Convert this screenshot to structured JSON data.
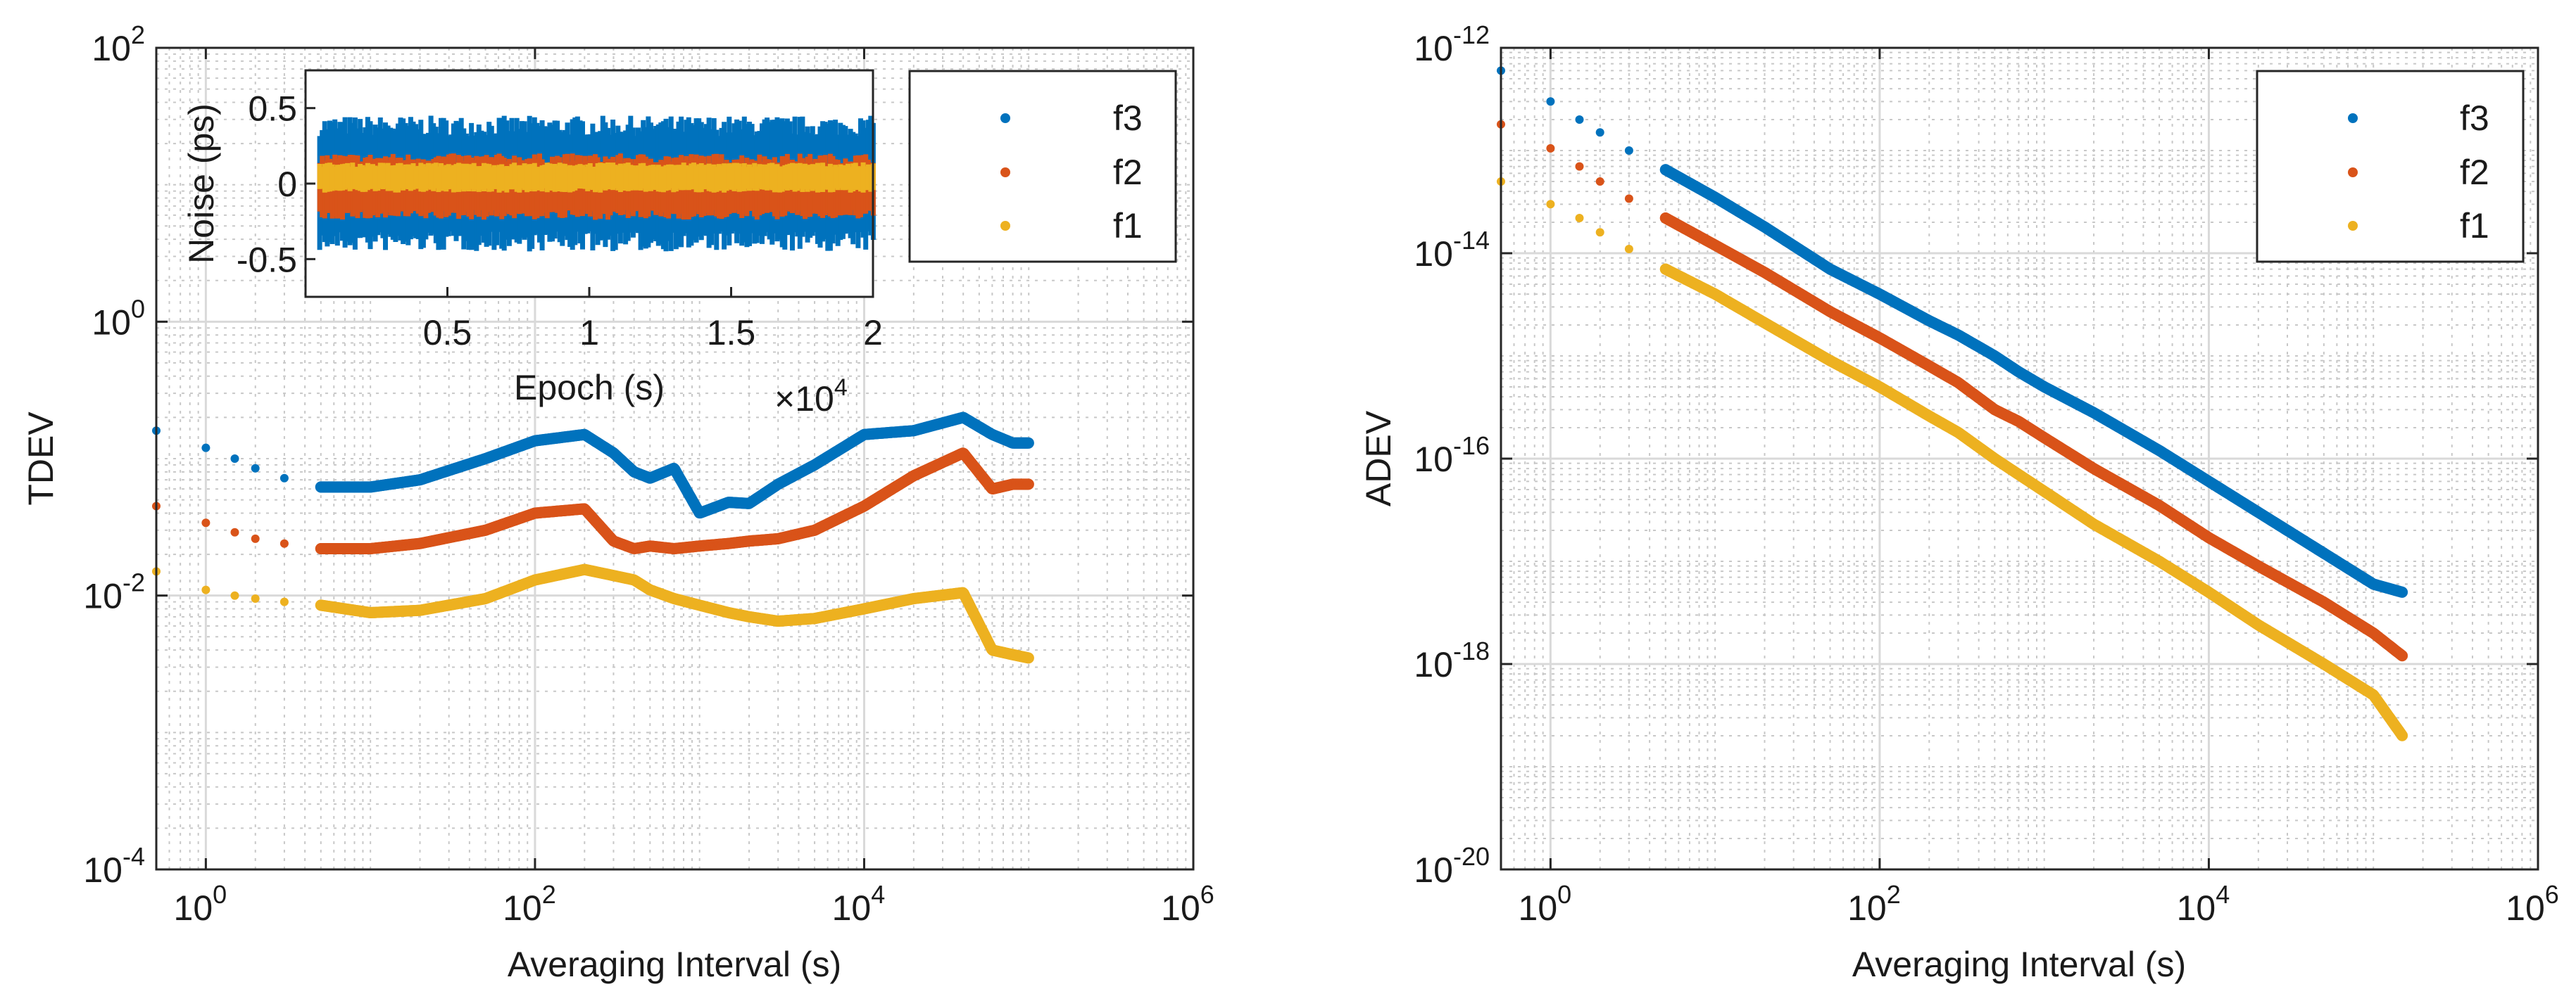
{
  "chart_data": [
    {
      "type": "scatter",
      "id": "tdev",
      "xlabel": "Averaging Interval (s)",
      "ylabel": "TDEV",
      "xscale": "log",
      "yscale": "log",
      "xlim": [
        0.5,
        1000000
      ],
      "ylim": [
        0.0001,
        100
      ],
      "grid": true,
      "xticks": [
        {
          "value": 1,
          "base": "10",
          "exp": "0"
        },
        {
          "value": 100,
          "base": "10",
          "exp": "2"
        },
        {
          "value": 10000,
          "base": "10",
          "exp": "4"
        },
        {
          "value": 1000000,
          "base": "10",
          "exp": "6"
        }
      ],
      "yticks": [
        {
          "value": 0.0001,
          "base": "10",
          "exp": "-4"
        },
        {
          "value": 0.01,
          "base": "10",
          "exp": "-2"
        },
        {
          "value": 1,
          "base": "10",
          "exp": "0"
        },
        {
          "value": 100,
          "base": "10",
          "exp": "2"
        }
      ],
      "legend_position": "top-right",
      "series": [
        {
          "name": "f3",
          "color": "#0072BD",
          "x": [
            0.5,
            1,
            1.5,
            2,
            3,
            5,
            10,
            20,
            50,
            100,
            200,
            300,
            400,
            500,
            700,
            1000,
            1500,
            2000,
            3000,
            5000,
            10000,
            20000,
            40000,
            60000,
            80000,
            100000
          ],
          "y": [
            0.16,
            0.12,
            0.1,
            0.085,
            0.072,
            0.062,
            0.062,
            0.07,
            0.1,
            0.135,
            0.15,
            0.11,
            0.08,
            0.072,
            0.085,
            0.04,
            0.048,
            0.047,
            0.065,
            0.09,
            0.15,
            0.16,
            0.2,
            0.15,
            0.13,
            0.13
          ]
        },
        {
          "name": "f2",
          "color": "#D95319",
          "x": [
            0.5,
            1,
            1.5,
            2,
            3,
            5,
            10,
            20,
            50,
            100,
            200,
            300,
            400,
            500,
            700,
            1000,
            1500,
            2000,
            3000,
            5000,
            10000,
            20000,
            40000,
            60000,
            80000,
            100000
          ],
          "y": [
            0.045,
            0.034,
            0.029,
            0.026,
            0.024,
            0.022,
            0.022,
            0.024,
            0.03,
            0.04,
            0.043,
            0.025,
            0.022,
            0.023,
            0.022,
            0.023,
            0.024,
            0.025,
            0.026,
            0.03,
            0.045,
            0.075,
            0.11,
            0.06,
            0.065,
            0.065
          ]
        },
        {
          "name": "f1",
          "color": "#EDB120",
          "x": [
            0.5,
            1,
            1.5,
            2,
            3,
            5,
            10,
            20,
            50,
            100,
            200,
            300,
            400,
            500,
            700,
            1000,
            1500,
            2000,
            3000,
            5000,
            10000,
            20000,
            40000,
            60000,
            80000,
            100000
          ],
          "y": [
            0.015,
            0.011,
            0.01,
            0.0095,
            0.009,
            0.0085,
            0.0075,
            0.0078,
            0.0095,
            0.013,
            0.0155,
            0.014,
            0.013,
            0.011,
            0.0095,
            0.0085,
            0.0075,
            0.007,
            0.0065,
            0.0068,
            0.008,
            0.0095,
            0.0105,
            0.004,
            0.0037,
            0.0035
          ]
        }
      ],
      "inset": {
        "type": "scatter",
        "xlabel": "Epoch (s)",
        "ylabel": "Noise (ps)",
        "xlim": [
          0,
          20000
        ],
        "ylim": [
          -0.75,
          0.75
        ],
        "xticks": [
          "0.5",
          "1",
          "1.5",
          "2"
        ],
        "xtick_values": [
          5000,
          10000,
          15000,
          20000
        ],
        "yticks": [
          "0.5",
          "0",
          "-0.5"
        ],
        "ytick_values": [
          0.5,
          0,
          -0.5
        ],
        "exponent_label": {
          "prefix": "×10",
          "exp": "4"
        },
        "series": [
          {
            "name": "f3",
            "color": "#0072BD",
            "center": 0.0,
            "half_range": 0.45
          },
          {
            "name": "f2",
            "color": "#D95319",
            "center": -0.02,
            "half_range": 0.22
          },
          {
            "name": "f1",
            "color": "#EDB120",
            "center": 0.04,
            "half_range": 0.1
          }
        ]
      }
    },
    {
      "type": "scatter",
      "id": "adev",
      "xlabel": "Averaging Interval (s)",
      "ylabel": "ADEV",
      "xscale": "log",
      "yscale": "log",
      "xlim": [
        0.5,
        1000000
      ],
      "ylim": [
        1e-20,
        1e-12
      ],
      "grid": true,
      "xticks": [
        {
          "value": 1,
          "base": "10",
          "exp": "0"
        },
        {
          "value": 100,
          "base": "10",
          "exp": "2"
        },
        {
          "value": 10000,
          "base": "10",
          "exp": "4"
        },
        {
          "value": 1000000,
          "base": "10",
          "exp": "6"
        }
      ],
      "yticks": [
        {
          "value": 1e-20,
          "base": "10",
          "exp": "-20"
        },
        {
          "value": 1e-18,
          "base": "10",
          "exp": "-18"
        },
        {
          "value": 1e-16,
          "base": "10",
          "exp": "-16"
        },
        {
          "value": 1e-14,
          "base": "10",
          "exp": "-14"
        },
        {
          "value": 1e-12,
          "base": "10",
          "exp": "-12"
        }
      ],
      "legend_position": "top-right",
      "series": [
        {
          "name": "f3",
          "color": "#0072BD",
          "x": [
            0.5,
            1,
            1.5,
            2,
            3,
            5,
            10,
            20,
            50,
            100,
            200,
            300,
            500,
            700,
            1000,
            2000,
            5000,
            10000,
            20000,
            50000,
            100000,
            150000
          ],
          "y": [
            6e-13,
            3e-13,
            2e-13,
            1.5e-13,
            1e-13,
            6.5e-14,
            3.5e-14,
            1.8e-14,
            7e-15,
            4e-15,
            2.2e-15,
            1.6e-15,
            1e-15,
            7e-16,
            5e-16,
            2.8e-16,
            1.2e-16,
            6e-17,
            3e-17,
            1.2e-17,
            6e-18,
            5e-18
          ]
        },
        {
          "name": "f2",
          "color": "#D95319",
          "x": [
            0.5,
            1,
            1.5,
            2,
            3,
            5,
            10,
            20,
            50,
            100,
            200,
            300,
            500,
            700,
            1000,
            2000,
            5000,
            10000,
            20000,
            50000,
            100000,
            150000
          ],
          "y": [
            1.8e-13,
            1.05e-13,
            7e-14,
            5e-14,
            3.4e-14,
            2.2e-14,
            1.2e-14,
            6.5e-15,
            2.7e-15,
            1.5e-15,
            8e-16,
            5.5e-16,
            3e-16,
            2.3e-16,
            1.6e-16,
            8e-17,
            3.5e-17,
            1.7e-17,
            9e-18,
            4e-18,
            2e-18,
            1.2e-18
          ]
        },
        {
          "name": "f1",
          "color": "#EDB120",
          "x": [
            0.5,
            1,
            1.5,
            2,
            3,
            5,
            10,
            20,
            50,
            100,
            200,
            300,
            500,
            700,
            1000,
            2000,
            5000,
            10000,
            20000,
            50000,
            100000,
            150000
          ],
          "y": [
            5e-14,
            3e-14,
            2.2e-14,
            1.6e-14,
            1.1e-14,
            7e-15,
            4e-15,
            2.1e-15,
            9e-16,
            5e-16,
            2.6e-16,
            1.8e-16,
            1e-16,
            7e-17,
            4.8e-17,
            2.3e-17,
            1e-17,
            5e-18,
            2.4e-18,
            1e-18,
            5e-19,
            2e-19
          ]
        }
      ]
    }
  ]
}
